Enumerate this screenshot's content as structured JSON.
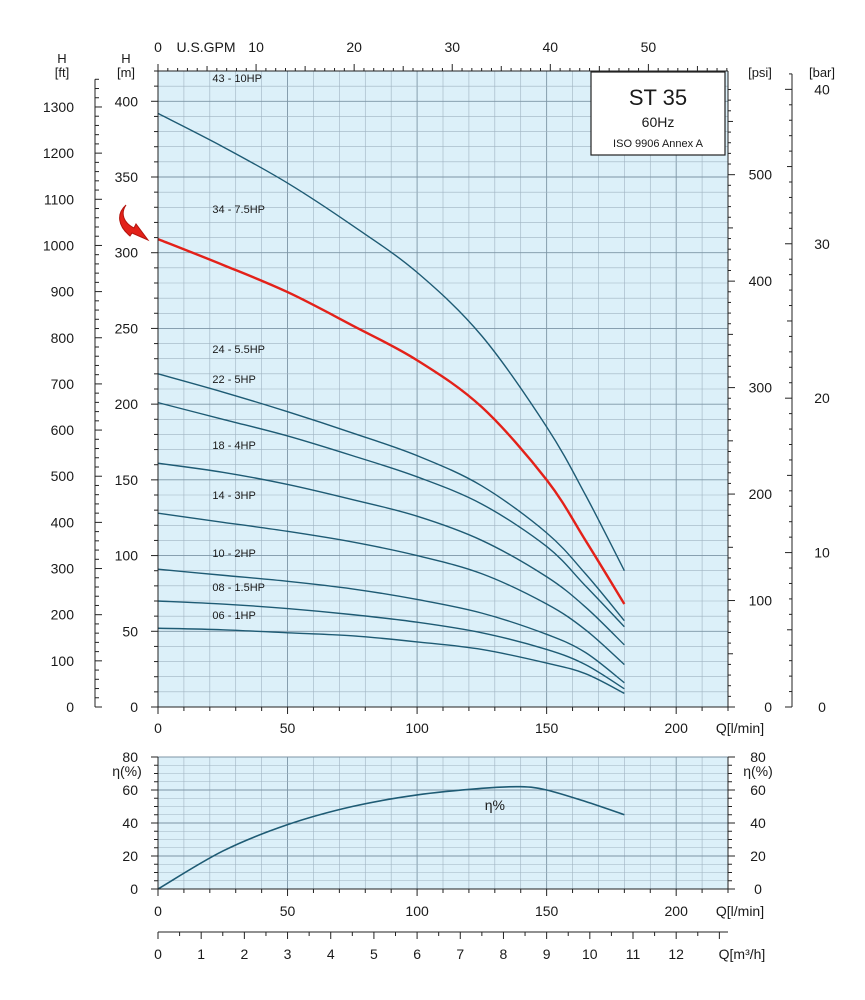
{
  "chart_data": [
    {
      "type": "line",
      "title": "ST 35",
      "subtitle": "60Hz",
      "standard": "ISO 9906 Annex A",
      "xlabel": "Q[l/min]",
      "ylabel": "H [m]",
      "xlim": [
        0,
        220
      ],
      "ylim": [
        0,
        420
      ],
      "x_ticks": [
        0,
        50,
        100,
        150,
        200
      ],
      "y_ticks": [
        0,
        50,
        100,
        150,
        200,
        250,
        300,
        350,
        400
      ],
      "grid": true,
      "highlight_series": "34 - 7.5HP",
      "highlight_color": "#e32119",
      "line_color": "#1e5b74",
      "background_color": "#dcf0f9",
      "secondary_axes": {
        "top": {
          "label": "U.S.GPM",
          "ticks": [
            0,
            10,
            20,
            30,
            40,
            50
          ]
        },
        "left_ft": {
          "unit_label": "H",
          "unit": "[ft]",
          "ticks": [
            0,
            100,
            200,
            300,
            400,
            500,
            600,
            700,
            800,
            900,
            1000,
            1100,
            1200,
            1300
          ]
        },
        "right_psi": {
          "unit": "[psi]",
          "ticks": [
            0,
            100,
            200,
            300,
            400,
            500
          ]
        },
        "right_bar": {
          "unit": "[bar]",
          "ticks": [
            0,
            10,
            20,
            30,
            40
          ]
        }
      },
      "series": [
        {
          "name": "43 - 10HP",
          "x": [
            0,
            25,
            50,
            75,
            100,
            125,
            150,
            165,
            180
          ],
          "values": [
            392,
            370,
            346,
            318,
            287,
            245,
            185,
            140,
            90
          ]
        },
        {
          "name": "34 - 7.5HP",
          "x": [
            0,
            25,
            50,
            75,
            100,
            125,
            150,
            165,
            180
          ],
          "values": [
            309,
            292,
            274,
            252,
            229,
            198,
            150,
            110,
            68
          ]
        },
        {
          "name": "24 - 5.5HP",
          "x": [
            0,
            25,
            50,
            75,
            100,
            125,
            150,
            165,
            180
          ],
          "values": [
            220,
            208,
            195,
            181,
            166,
            146,
            115,
            88,
            57
          ]
        },
        {
          "name": "22 - 5HP",
          "x": [
            0,
            25,
            50,
            75,
            100,
            125,
            150,
            165,
            180
          ],
          "values": [
            201,
            190,
            179,
            166,
            152,
            134,
            106,
            80,
            53
          ]
        },
        {
          "name": "18 - 4HP",
          "x": [
            0,
            25,
            50,
            75,
            100,
            125,
            150,
            165,
            180
          ],
          "values": [
            161,
            155,
            147,
            137,
            126,
            110,
            86,
            66,
            41
          ]
        },
        {
          "name": "14 - 3HP",
          "x": [
            0,
            25,
            50,
            75,
            100,
            125,
            150,
            165,
            180
          ],
          "values": [
            128,
            122,
            116,
            109,
            100,
            88,
            68,
            51,
            28
          ]
        },
        {
          "name": "10 - 2HP",
          "x": [
            0,
            25,
            50,
            75,
            100,
            125,
            150,
            165,
            180
          ],
          "values": [
            91,
            87,
            83,
            78,
            71,
            62,
            48,
            36,
            16
          ]
        },
        {
          "name": "08 - 1.5HP",
          "x": [
            0,
            25,
            50,
            75,
            100,
            125,
            150,
            165,
            180
          ],
          "values": [
            70,
            68,
            65,
            61,
            56,
            49,
            38,
            28,
            12
          ]
        },
        {
          "name": "06 - 1HP",
          "x": [
            0,
            25,
            50,
            75,
            100,
            125,
            150,
            165,
            180
          ],
          "values": [
            52,
            51,
            49,
            47,
            43,
            38,
            29,
            22,
            9
          ]
        }
      ]
    },
    {
      "type": "line",
      "xlabel": "Q[l/min]",
      "ylabel": "η(%)",
      "xlim": [
        0,
        220
      ],
      "ylim": [
        0,
        80
      ],
      "x_ticks": [
        0,
        50,
        100,
        150,
        200
      ],
      "y_ticks": [
        0,
        20,
        40,
        60,
        80
      ],
      "grid": true,
      "series": [
        {
          "name": "η%",
          "x": [
            0,
            25,
            50,
            75,
            100,
            125,
            140,
            150,
            165,
            180
          ],
          "values": [
            0,
            23,
            39,
            50,
            57,
            61,
            62,
            60,
            53,
            45
          ]
        }
      ],
      "secondary_axes": {
        "bottom_m3h": {
          "label": "Q[m³/h]",
          "ticks": [
            0,
            1,
            2,
            3,
            4,
            5,
            6,
            7,
            8,
            9,
            10,
            11,
            12
          ]
        }
      }
    }
  ]
}
